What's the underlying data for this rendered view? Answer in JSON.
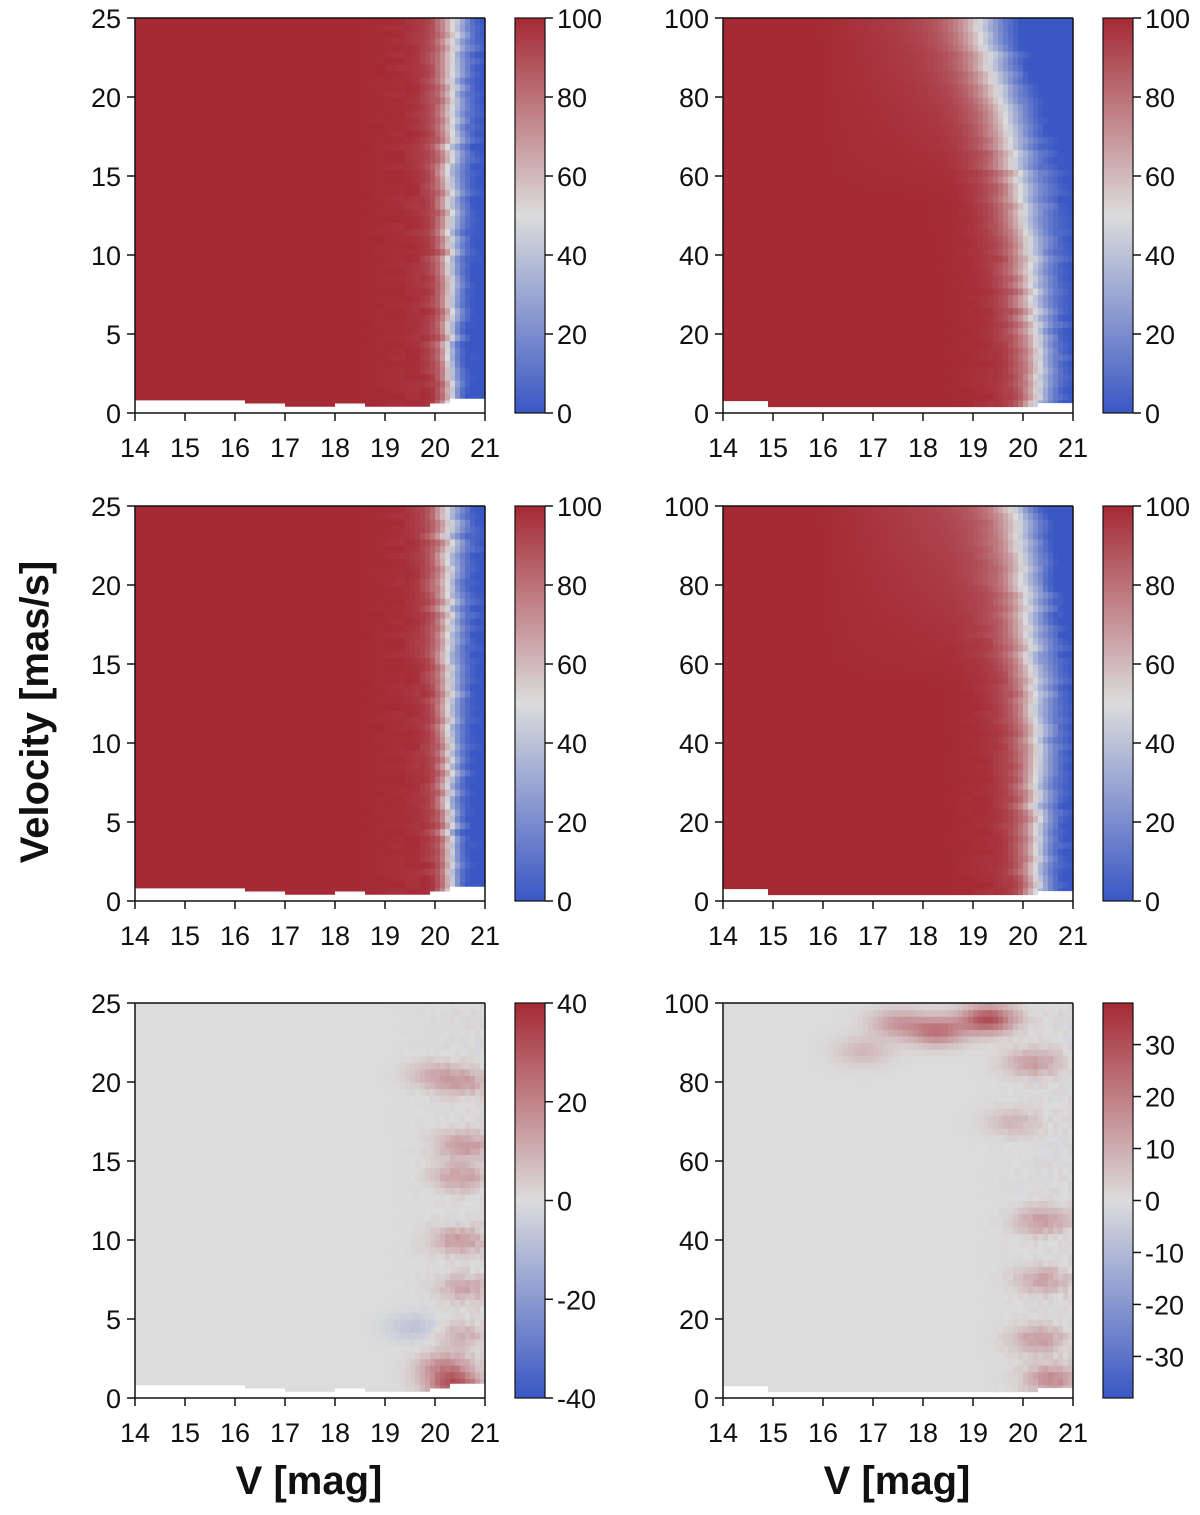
{
  "figure": {
    "ylabel": "Velocity [mas/s]",
    "xlabel_left": "V [mag]",
    "xlabel_right": "V [mag]"
  },
  "colors": {
    "high": "#a52a35",
    "mid": "#dcdcdc",
    "low": "#3a57c4",
    "nodata": "#ffffff"
  },
  "chart_data": [
    {
      "type": "heatmap",
      "panel": "row1-left",
      "x_ticks": [
        14,
        15,
        16,
        17,
        18,
        19,
        20,
        21
      ],
      "xlim": [
        14,
        21
      ],
      "y_ticks": [
        0,
        5,
        10,
        15,
        20,
        25
      ],
      "ylim": [
        0,
        25
      ],
      "colorbar": {
        "range": [
          0,
          100
        ],
        "ticks": [
          0,
          20,
          40,
          60,
          80,
          100
        ]
      },
      "mode": "detection",
      "transition_mag_at_ymin": 20.3,
      "transition_mag_at_ymax": 20.4,
      "transition_width": 0.25,
      "min_velocity_by_mag": [
        [
          14,
          0.8
        ],
        [
          16.2,
          0.8
        ],
        [
          16.2,
          0.6
        ],
        [
          17.0,
          0.6
        ],
        [
          17.0,
          0.4
        ],
        [
          18.0,
          0.4
        ],
        [
          18.0,
          0.6
        ],
        [
          18.6,
          0.6
        ],
        [
          18.6,
          0.4
        ],
        [
          19.9,
          0.4
        ],
        [
          19.9,
          0.6
        ],
        [
          20.3,
          0.6
        ],
        [
          20.3,
          0.9
        ],
        [
          21,
          0.9
        ]
      ]
    },
    {
      "type": "heatmap",
      "panel": "row1-right",
      "x_ticks": [
        14,
        15,
        16,
        17,
        18,
        19,
        20,
        21
      ],
      "xlim": [
        14,
        21
      ],
      "y_ticks": [
        0,
        20,
        40,
        60,
        80,
        100
      ],
      "ylim": [
        0,
        100
      ],
      "colorbar": {
        "range": [
          0,
          100
        ],
        "ticks": [
          0,
          20,
          40,
          60,
          80,
          100
        ]
      },
      "mode": "detection",
      "transition_mag_at_ymin": 20.3,
      "transition_mag_at_ymax": 19.2,
      "transition_width": 0.45,
      "min_velocity_by_mag": [
        [
          14,
          3
        ],
        [
          14.9,
          3
        ],
        [
          14.9,
          1.5
        ],
        [
          20.3,
          1.5
        ],
        [
          20.3,
          2.5
        ],
        [
          21,
          2.5
        ]
      ]
    },
    {
      "type": "heatmap",
      "panel": "row2-left",
      "x_ticks": [
        14,
        15,
        16,
        17,
        18,
        19,
        20,
        21
      ],
      "xlim": [
        14,
        21
      ],
      "y_ticks": [
        0,
        5,
        10,
        15,
        20,
        25
      ],
      "ylim": [
        0,
        25
      ],
      "colorbar": {
        "range": [
          0,
          100
        ],
        "ticks": [
          0,
          20,
          40,
          60,
          80,
          100
        ]
      },
      "mode": "detection",
      "transition_mag_at_ymin": 20.3,
      "transition_mag_at_ymax": 20.3,
      "transition_width": 0.25,
      "min_velocity_by_mag": [
        [
          14,
          0.8
        ],
        [
          16.2,
          0.8
        ],
        [
          16.2,
          0.6
        ],
        [
          17.0,
          0.6
        ],
        [
          17.0,
          0.4
        ],
        [
          18.0,
          0.4
        ],
        [
          18.0,
          0.6
        ],
        [
          18.6,
          0.6
        ],
        [
          18.6,
          0.4
        ],
        [
          19.9,
          0.4
        ],
        [
          19.9,
          0.6
        ],
        [
          20.3,
          0.6
        ],
        [
          20.3,
          0.9
        ],
        [
          21,
          0.9
        ]
      ]
    },
    {
      "type": "heatmap",
      "panel": "row2-right",
      "x_ticks": [
        14,
        15,
        16,
        17,
        18,
        19,
        20,
        21
      ],
      "xlim": [
        14,
        21
      ],
      "y_ticks": [
        0,
        20,
        40,
        60,
        80,
        100
      ],
      "ylim": [
        0,
        100
      ],
      "colorbar": {
        "range": [
          0,
          100
        ],
        "ticks": [
          0,
          20,
          40,
          60,
          80,
          100
        ]
      },
      "mode": "detection",
      "transition_mag_at_ymin": 20.3,
      "transition_mag_at_ymax": 20.0,
      "transition_width": 0.4,
      "min_velocity_by_mag": [
        [
          14,
          3
        ],
        [
          14.9,
          3
        ],
        [
          14.9,
          1.5
        ],
        [
          20.3,
          1.5
        ],
        [
          20.3,
          2.5
        ],
        [
          21,
          2.5
        ]
      ]
    },
    {
      "type": "heatmap",
      "panel": "row3-left",
      "x_ticks": [
        14,
        15,
        16,
        17,
        18,
        19,
        20,
        21
      ],
      "xlim": [
        14,
        21
      ],
      "y_ticks": [
        0,
        5,
        10,
        15,
        20,
        25
      ],
      "ylim": [
        0,
        25
      ],
      "colorbar": {
        "range": [
          -40,
          40
        ],
        "ticks": [
          -40,
          -20,
          0,
          20,
          40
        ]
      },
      "mode": "difference",
      "hotspots": [
        [
          20.6,
          20,
          12
        ],
        [
          20.6,
          16,
          16
        ],
        [
          20.5,
          14,
          14
        ],
        [
          20.5,
          10,
          15
        ],
        [
          20.6,
          7,
          12
        ],
        [
          20.5,
          4,
          10
        ],
        [
          20.2,
          2,
          18
        ],
        [
          20.4,
          0.8,
          30
        ],
        [
          20.0,
          20.5,
          10
        ],
        [
          19.6,
          4.5,
          -8
        ]
      ],
      "min_velocity_by_mag": [
        [
          14,
          0.8
        ],
        [
          16.2,
          0.8
        ],
        [
          16.2,
          0.6
        ],
        [
          17.0,
          0.6
        ],
        [
          17.0,
          0.4
        ],
        [
          18.0,
          0.4
        ],
        [
          18.0,
          0.6
        ],
        [
          18.6,
          0.6
        ],
        [
          18.6,
          0.4
        ],
        [
          19.9,
          0.4
        ],
        [
          19.9,
          0.6
        ],
        [
          20.3,
          0.6
        ],
        [
          20.3,
          0.9
        ],
        [
          21,
          0.9
        ]
      ]
    },
    {
      "type": "heatmap",
      "panel": "row3-right",
      "x_ticks": [
        14,
        15,
        16,
        17,
        18,
        19,
        20,
        21
      ],
      "xlim": [
        14,
        21
      ],
      "y_ticks": [
        0,
        20,
        40,
        60,
        80,
        100
      ],
      "ylim": [
        0,
        100
      ],
      "colorbar": {
        "range": [
          -38,
          38
        ],
        "ticks": [
          -30,
          -20,
          -10,
          0,
          10,
          20,
          30
        ]
      },
      "mode": "difference",
      "hotspots": [
        [
          19.3,
          96,
          30
        ],
        [
          18.3,
          93,
          22
        ],
        [
          17.5,
          95,
          14
        ],
        [
          20.2,
          85,
          14
        ],
        [
          20.4,
          45,
          14
        ],
        [
          20.4,
          30,
          12
        ],
        [
          20.3,
          15,
          14
        ],
        [
          20.6,
          5,
          18
        ],
        [
          16.8,
          88,
          8
        ],
        [
          19.8,
          70,
          8
        ]
      ],
      "min_velocity_by_mag": [
        [
          14,
          3
        ],
        [
          14.9,
          3
        ],
        [
          14.9,
          1.5
        ],
        [
          20.3,
          1.5
        ],
        [
          20.3,
          2.5
        ],
        [
          21,
          2.5
        ]
      ]
    }
  ]
}
